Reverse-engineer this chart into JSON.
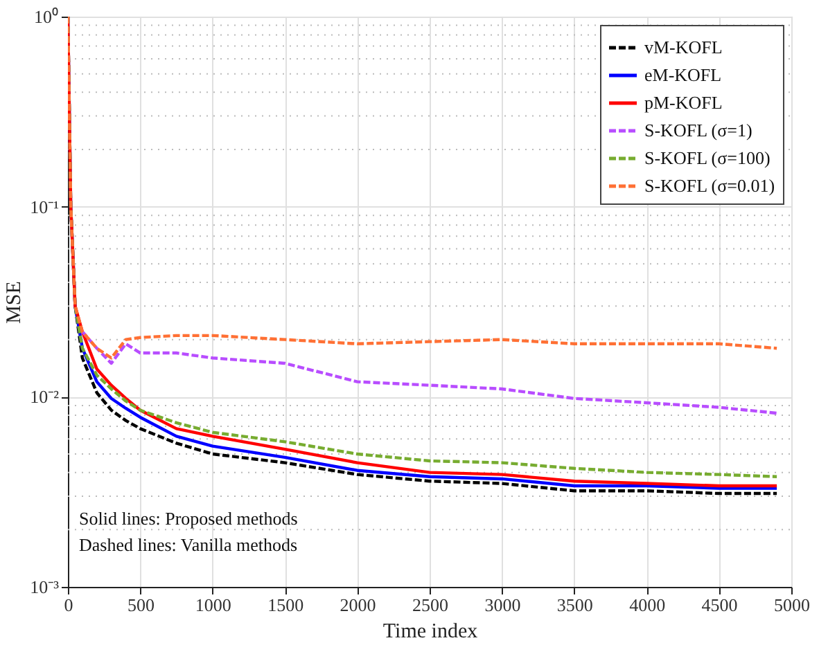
{
  "chart_data": {
    "type": "line",
    "xlabel": "Time index",
    "ylabel": "MSE",
    "log": "y",
    "grid": true,
    "legend": "top right",
    "marker": "none",
    "x": [
      0,
      20,
      50,
      100,
      200,
      300,
      400,
      500,
      750,
      1000,
      1500,
      2000,
      2500,
      3000,
      3500,
      4000,
      4500,
      4900
    ],
    "xlim": [
      0,
      5000
    ],
    "xticks": [
      0,
      500,
      1000,
      1500,
      2000,
      2500,
      3000,
      3500,
      4000,
      4500,
      5000
    ],
    "ylim": [
      0.001,
      1
    ],
    "yticks": [
      {
        "value": 0.001,
        "label": "10⁻³"
      },
      {
        "value": 0.01,
        "label": "10⁻²"
      },
      {
        "value": 0.1,
        "label": "10⁻¹"
      },
      {
        "value": 1,
        "label": "10⁰"
      }
    ],
    "series": [
      {
        "name": "vM-KOFL",
        "color": "#000000",
        "line_style": "dashed",
        "values": [
          1,
          0.1,
          0.03,
          0.016,
          0.0105,
          0.0085,
          0.0075,
          0.0068,
          0.0057,
          0.005,
          0.0045,
          0.0039,
          0.0036,
          0.0035,
          0.0032,
          0.0032,
          0.0031,
          0.0031
        ]
      },
      {
        "name": "eM-KOFL",
        "color": "#0000ff",
        "line_style": "solid",
        "values": [
          1,
          0.1,
          0.03,
          0.018,
          0.012,
          0.0098,
          0.0087,
          0.0078,
          0.0062,
          0.0055,
          0.0048,
          0.0041,
          0.0038,
          0.0037,
          0.0034,
          0.0034,
          0.0033,
          0.0033
        ]
      },
      {
        "name": "pM-KOFL",
        "color": "#ff0000",
        "line_style": "solid",
        "values": [
          1,
          0.1,
          0.03,
          0.022,
          0.014,
          0.0115,
          0.0098,
          0.0085,
          0.0068,
          0.0062,
          0.0053,
          0.0045,
          0.004,
          0.0039,
          0.0036,
          0.0035,
          0.0034,
          0.0034
        ]
      },
      {
        "name": "S-KOFL (σ=1)",
        "color": "#b84dff",
        "line_style": "dashed",
        "values": [
          null,
          null,
          null,
          0.022,
          0.018,
          0.015,
          0.019,
          0.017,
          0.017,
          0.016,
          0.015,
          0.012,
          0.0115,
          0.011,
          0.0098,
          0.0093,
          0.0088,
          0.0082
        ]
      },
      {
        "name": "S-KOFL (σ=100)",
        "color": "#77ac30",
        "line_style": "dashed",
        "values": [
          1,
          0.1,
          0.03,
          0.018,
          0.013,
          0.011,
          0.0095,
          0.0085,
          0.0073,
          0.0065,
          0.0058,
          0.005,
          0.0046,
          0.0045,
          0.0042,
          0.004,
          0.0039,
          0.0038
        ]
      },
      {
        "name": "S-KOFL (σ=0.01)",
        "color": "#ff7034",
        "line_style": "dashed",
        "values": [
          1,
          0.1,
          0.03,
          0.022,
          0.018,
          0.016,
          0.02,
          0.0205,
          0.021,
          0.021,
          0.02,
          0.019,
          0.0195,
          0.02,
          0.019,
          0.019,
          0.019,
          0.018
        ]
      }
    ],
    "annotations": [
      "Solid lines: Proposed methods",
      "Dashed lines: Vanilla methods"
    ]
  }
}
